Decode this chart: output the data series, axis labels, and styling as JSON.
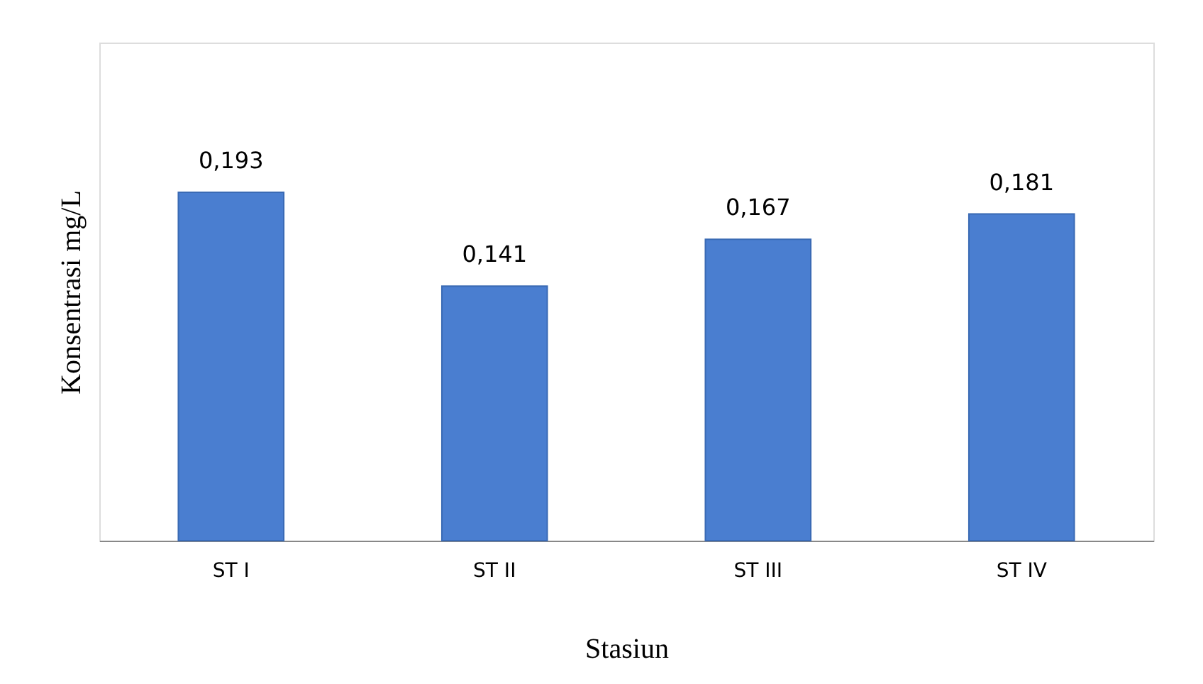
{
  "chart_data": {
    "type": "bar",
    "xlabel": "Stasiun",
    "ylabel": "Konsentrasi mg/L",
    "categories": [
      "ST I",
      "ST II",
      "ST III",
      "ST IV"
    ],
    "values": [
      0.193,
      0.141,
      0.167,
      0.181
    ],
    "value_labels": [
      "0,193",
      "0,141",
      "0,167",
      "0,181"
    ],
    "color": "#4a7ed0",
    "grid": false
  }
}
